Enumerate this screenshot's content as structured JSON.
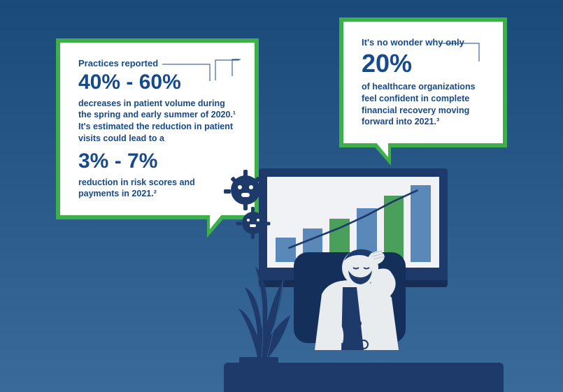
{
  "colors": {
    "background_top": "#1a4a7a",
    "background_bottom": "#3a6a9a",
    "bubble_border": "#3eb049",
    "bubble_fill": "#ffffff",
    "text_primary": "#174a8b",
    "illustration_dark": "#1d3a6a",
    "illustration_mid": "#35598e",
    "illustration_light": "#e8ecef",
    "plant_leaf": "#1d3a6a",
    "plant_pot": "#253a5c"
  },
  "left_bubble": {
    "intro": "Practices reported",
    "stat1": "40% - 60%",
    "body1": "decreases in patient volume during the spring and early summer of 2020.¹  It's estimated the reduction in patient visits could lead to a",
    "stat2": "3% - 7%",
    "body2": "reduction in risk scores and payments in 2021.²"
  },
  "right_bubble": {
    "intro": "It's no wonder why only",
    "stat": "20%",
    "body": "of healthcare organizations feel confident in complete financial recovery moving forward into 2021.³"
  },
  "chart": {
    "type": "bar",
    "bar_relative_heights": [
      32,
      44,
      56,
      70,
      86,
      100
    ],
    "bar_colors": [
      "#5a88b8",
      "#5a88b8",
      "#4aa05a",
      "#5a88b8",
      "#4aa05a",
      "#5a88b8"
    ],
    "trend_line_color": "#1d3a6a",
    "monitor_screen_bg": "#f0f2f5"
  },
  "typography": {
    "intro_fontsize": 13,
    "stat_fontsize": 30,
    "stat_big_fontsize": 36,
    "body_fontsize": 12.5,
    "text_color": "#174a8b"
  }
}
